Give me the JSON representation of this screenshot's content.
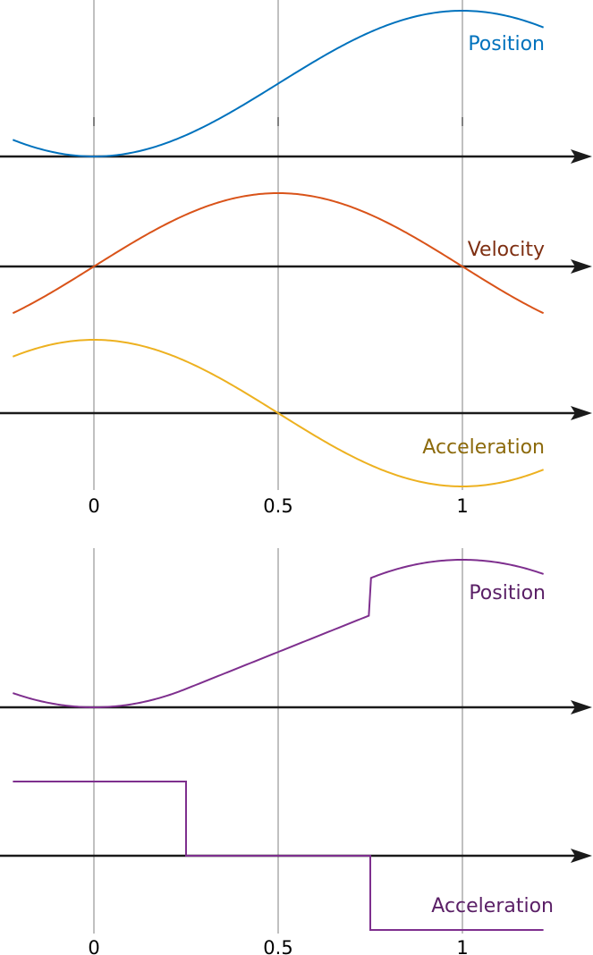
{
  "chart_data": [
    {
      "type": "line",
      "x_ticks": [
        "0",
        "0.5",
        "1"
      ],
      "x_tick_values": [
        0,
        0.5,
        1
      ],
      "xlim": [
        -0.22,
        1.22
      ],
      "grid": "vertical lines at ticks",
      "series": [
        {
          "name": "Position",
          "color": "#0072bd",
          "label_color": "#0072bd",
          "function": "(1 - cos(pi*x)) / 2",
          "ylim": [
            0,
            1
          ]
        },
        {
          "name": "Velocity",
          "color": "#d95319",
          "label_color": "#7e2f12",
          "function": "sin(pi*x)",
          "ylim": [
            -1,
            1
          ]
        },
        {
          "name": "Acceleration",
          "color": "#edb120",
          "label_color": "#8c6a0c",
          "function": "cos(pi*x)",
          "ylim": [
            -1,
            1
          ]
        }
      ]
    },
    {
      "type": "line",
      "x_ticks": [
        "0",
        "0.5",
        "1"
      ],
      "x_tick_values": [
        0,
        0.5,
        1
      ],
      "xlim": [
        -0.22,
        1.22
      ],
      "grid": "vertical lines at ticks",
      "series": [
        {
          "name": "Position",
          "color": "#7e2f8e",
          "label_color": "#5a1f66",
          "function": "piecewise quadratic / linear / quadratic",
          "ylim": [
            0,
            1
          ]
        },
        {
          "name": "Acceleration",
          "color": "#7e2f8e",
          "label_color": "#5a1f66",
          "function": "bang-bang step",
          "x": [
            -0.22,
            0.25,
            0.25,
            0.75,
            0.75,
            1.22
          ],
          "y": [
            1,
            1,
            0,
            0,
            -1,
            -1
          ]
        }
      ]
    }
  ]
}
